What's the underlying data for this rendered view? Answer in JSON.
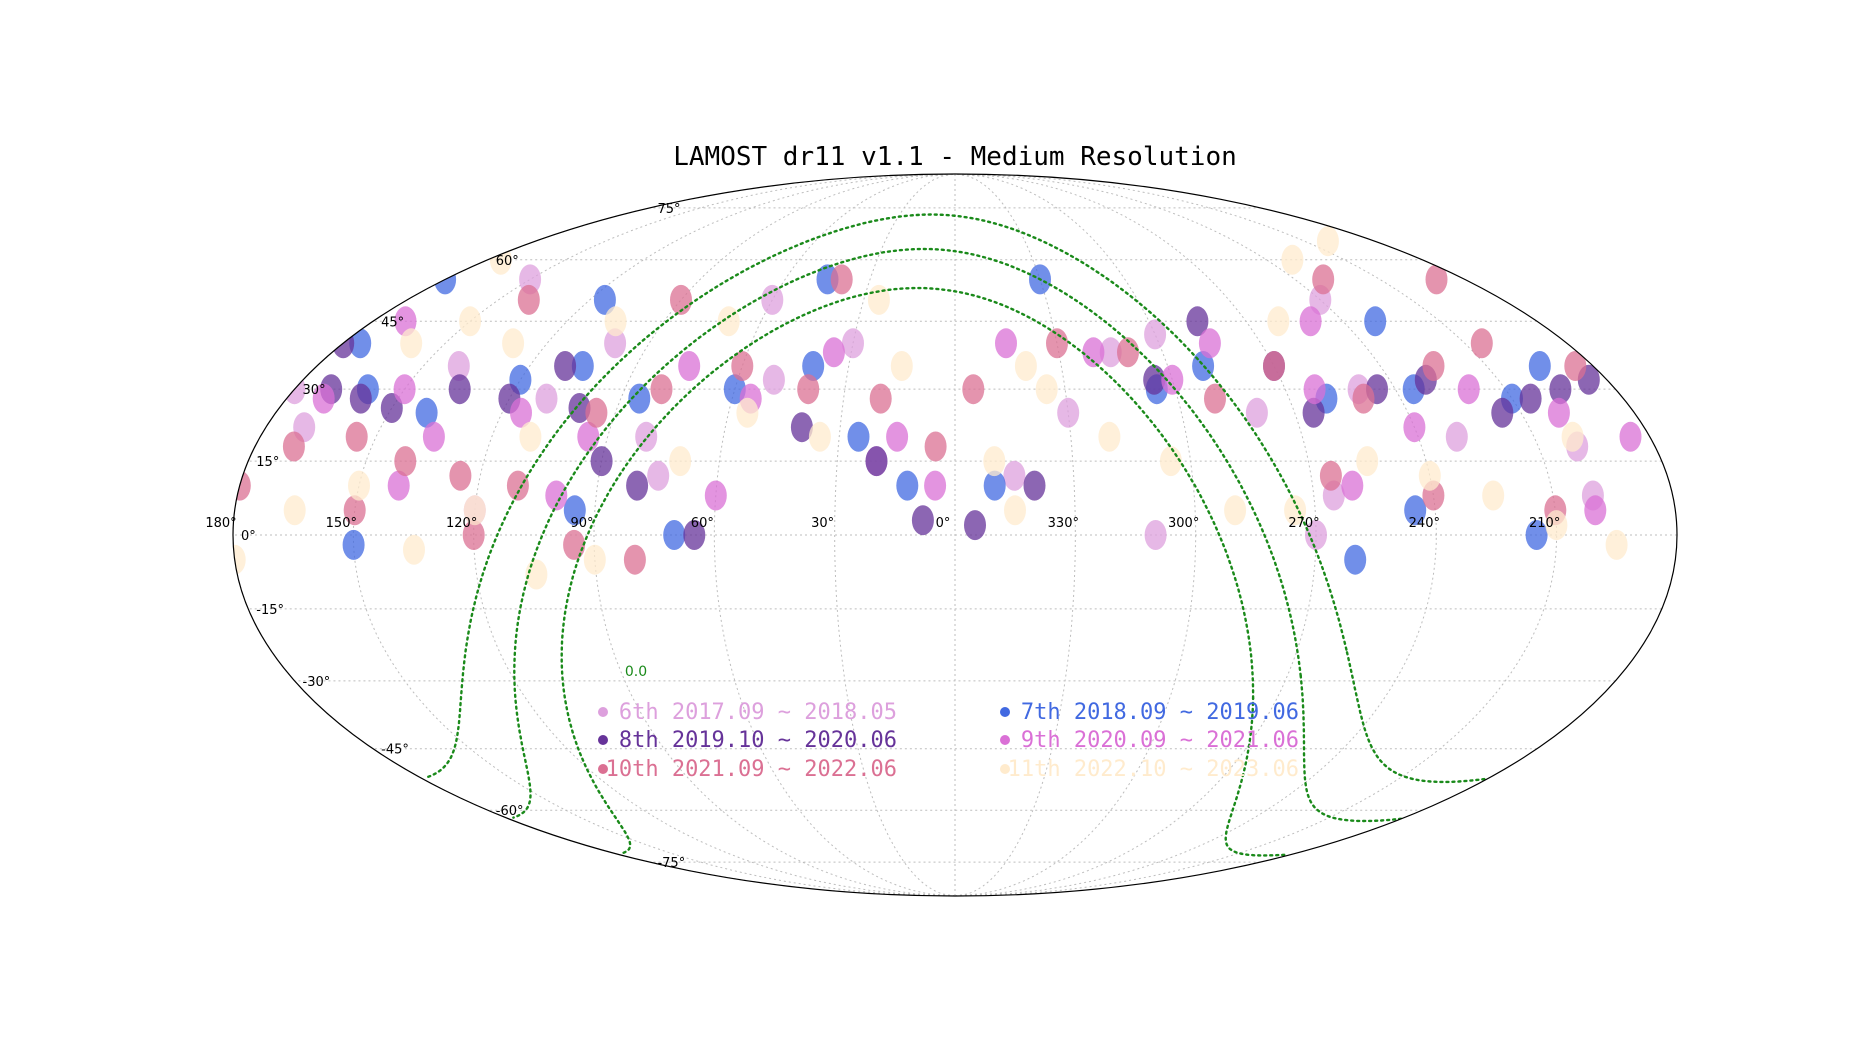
{
  "chart_data": {
    "type": "scatter",
    "projection": "mollweide",
    "title": "LAMOST dr11 v1.1 - Medium Resolution",
    "x_axis": {
      "label": "",
      "ticks": [
        330,
        300,
        270,
        240,
        210,
        180,
        150,
        120,
        90,
        60,
        30,
        0
      ],
      "tick_labels": [
        "330°",
        "300°",
        "270°",
        "240°",
        "210°",
        "180°",
        "150°",
        "120°",
        "90°",
        "60°",
        "30°",
        "0°"
      ]
    },
    "y_axis": {
      "label": "",
      "ticks": [
        75,
        60,
        45,
        30,
        15,
        0,
        -15,
        -30,
        -45,
        -60,
        -75
      ],
      "tick_labels": [
        "75°",
        "60°",
        "45°",
        "30°",
        "15°",
        "0°",
        "-15°",
        "-30°",
        "-45°",
        "-60°",
        "-75°"
      ]
    },
    "grid": true,
    "galactic_plane_label": "0.0",
    "legend_placement": "lower-center",
    "series": [
      {
        "name": "6th 2017.09 ~ 2018.05",
        "color": "#dda0dd",
        "points": [
          [
            315,
            38
          ],
          [
            300,
            42
          ],
          [
            280,
            25
          ],
          [
            250,
            30
          ],
          [
            230,
            20
          ],
          [
            200,
            18
          ],
          [
            170,
            22
          ],
          [
            140,
            35
          ],
          [
            110,
            28
          ],
          [
            80,
            20
          ],
          [
            50,
            32
          ],
          [
            30,
            40
          ],
          [
            345,
            12
          ],
          [
            265,
            8
          ],
          [
            200,
            8
          ],
          [
            120,
            5
          ],
          [
            75,
            12
          ],
          [
            20,
            15
          ],
          [
            330,
            25
          ],
          [
            240,
            50
          ],
          [
            150,
            55
          ],
          [
            60,
            50
          ],
          [
            310,
            0
          ],
          [
            270,
            0
          ],
          [
            180,
            30
          ],
          [
            100,
            40
          ]
        ]
      },
      {
        "name": "7th 2018.09 ~ 2019.06",
        "color": "#4169e1",
        "points": [
          [
            305,
            30
          ],
          [
            290,
            35
          ],
          [
            260,
            28
          ],
          [
            235,
            30
          ],
          [
            210,
            28
          ],
          [
            195,
            35
          ],
          [
            175,
            40
          ],
          [
            160,
            30
          ],
          [
            140,
            25
          ],
          [
            120,
            32
          ],
          [
            105,
            35
          ],
          [
            85,
            28
          ],
          [
            60,
            30
          ],
          [
            40,
            35
          ],
          [
            25,
            20
          ],
          [
            12,
            10
          ],
          [
            350,
            10
          ],
          [
            260,
            -5
          ],
          [
            245,
            5
          ],
          [
            215,
            0
          ],
          [
            150,
            -2
          ],
          [
            95,
            5
          ],
          [
            70,
            0
          ],
          [
            180,
            55
          ],
          [
            230,
            45
          ],
          [
            115,
            50
          ],
          [
            45,
            55
          ],
          [
            330,
            55
          ]
        ]
      },
      {
        "name": "8th 2019.10 ~ 2020.06",
        "color": "#663399",
        "points": [
          [
            305,
            32
          ],
          [
            285,
            45
          ],
          [
            265,
            25
          ],
          [
            245,
            30
          ],
          [
            215,
            25
          ],
          [
            205,
            28
          ],
          [
            195,
            30
          ],
          [
            185,
            32
          ],
          [
            170,
            30
          ],
          [
            160,
            28
          ],
          [
            150,
            26
          ],
          [
            135,
            30
          ],
          [
            120,
            28
          ],
          [
            100,
            26
          ],
          [
            90,
            15
          ],
          [
            80,
            10
          ],
          [
            65,
            0
          ],
          [
            40,
            22
          ],
          [
            20,
            15
          ],
          [
            8,
            3
          ],
          [
            355,
            2
          ],
          [
            340,
            10
          ],
          [
            270,
            35
          ],
          [
            180,
            40
          ],
          [
            230,
            32
          ],
          [
            110,
            35
          ]
        ]
      },
      {
        "name": "9th 2020.09 ~ 2021.06",
        "color": "#da70d6",
        "points": [
          [
            320,
            38
          ],
          [
            300,
            32
          ],
          [
            285,
            40
          ],
          [
            262,
            30
          ],
          [
            240,
            22
          ],
          [
            220,
            30
          ],
          [
            200,
            25
          ],
          [
            185,
            20
          ],
          [
            170,
            28
          ],
          [
            150,
            30
          ],
          [
            135,
            20
          ],
          [
            115,
            25
          ],
          [
            95,
            20
          ],
          [
            75,
            35
          ],
          [
            55,
            28
          ],
          [
            35,
            38
          ],
          [
            15,
            20
          ],
          [
            5,
            10
          ],
          [
            345,
            40
          ],
          [
            260,
            10
          ],
          [
            200,
            5
          ],
          [
            140,
            10
          ],
          [
            100,
            8
          ],
          [
            60,
            8
          ],
          [
            250,
            45
          ],
          [
            170,
            45
          ]
        ]
      },
      {
        "name": "10th 2021.09 ~ 2022.06",
        "color": "#db7093",
        "points": [
          [
            330,
            40
          ],
          [
            310,
            38
          ],
          [
            290,
            28
          ],
          [
            270,
            35
          ],
          [
            250,
            28
          ],
          [
            225,
            35
          ],
          [
            205,
            40
          ],
          [
            185,
            35
          ],
          [
            170,
            18
          ],
          [
            155,
            20
          ],
          [
            140,
            15
          ],
          [
            125,
            12
          ],
          [
            110,
            10
          ],
          [
            95,
            25
          ],
          [
            80,
            30
          ],
          [
            60,
            35
          ],
          [
            40,
            30
          ],
          [
            20,
            28
          ],
          [
            5,
            18
          ],
          [
            355,
            30
          ],
          [
            265,
            12
          ],
          [
            240,
            8
          ],
          [
            210,
            5
          ],
          [
            180,
            10
          ],
          [
            150,
            5
          ],
          [
            120,
            0
          ],
          [
            95,
            -2
          ],
          [
            80,
            -5
          ],
          [
            230,
            55
          ],
          [
            190,
            55
          ],
          [
            140,
            50
          ],
          [
            90,
            50
          ],
          [
            40,
            55
          ]
        ]
      },
      {
        "name": "11th 2022.10 ~ 2023.06",
        "color": "#ffebcd",
        "points": [
          [
            335,
            30
          ],
          [
            320,
            20
          ],
          [
            305,
            15
          ],
          [
            290,
            5
          ],
          [
            275,
            5
          ],
          [
            255,
            15
          ],
          [
            240,
            12
          ],
          [
            225,
            8
          ],
          [
            210,
            2
          ],
          [
            195,
            -2
          ],
          [
            180,
            -5
          ],
          [
            165,
            5
          ],
          [
            150,
            10
          ],
          [
            135,
            -3
          ],
          [
            120,
            5
          ],
          [
            105,
            -8
          ],
          [
            90,
            -5
          ],
          [
            70,
            15
          ],
          [
            55,
            25
          ],
          [
            35,
            20
          ],
          [
            15,
            35
          ],
          [
            350,
            15
          ],
          [
            340,
            35
          ],
          [
            260,
            45
          ],
          [
            230,
            60
          ],
          [
            200,
            65
          ],
          [
            175,
            60
          ],
          [
            150,
            45
          ],
          [
            130,
            40
          ],
          [
            105,
            45
          ],
          [
            70,
            45
          ],
          [
            25,
            50
          ],
          [
            345,
            5
          ],
          [
            200,
            20
          ],
          [
            160,
            40
          ],
          [
            110,
            20
          ]
        ]
      }
    ]
  }
}
